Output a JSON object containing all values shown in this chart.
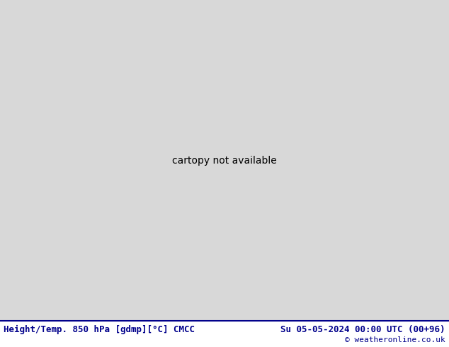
{
  "title_left": "Height/Temp. 850 hPa [gdmp][°C] CMCC",
  "title_right": "Su 05-05-2024 00:00 UTC (00+96)",
  "copyright": "© weatheronline.co.uk",
  "bg_color": "#d8d8d8",
  "land_gray": "#b0b0b0",
  "green_fill": "#b8f0a0",
  "title_color": "#00008B",
  "copyright_color": "#00008B",
  "figsize": [
    6.34,
    4.9
  ],
  "dpi": 100
}
